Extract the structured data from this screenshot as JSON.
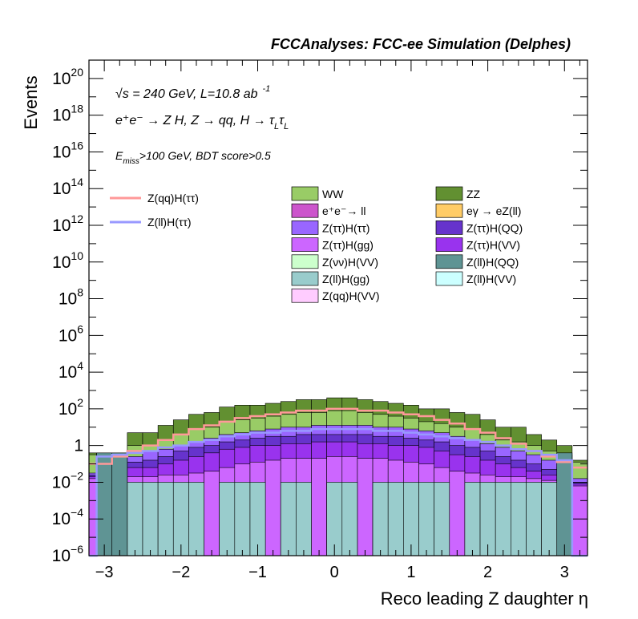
{
  "chart_data": {
    "type": "bar",
    "stacked": true,
    "title": "FCCAnalyses: FCC-ee Simulation (Delphes)",
    "xlabel": "Reco leading Z daughter η",
    "ylabel": "Events",
    "xlim": [
      -3.2,
      3.3
    ],
    "ylim_exp": [
      -6,
      21
    ],
    "y_scale": "log",
    "x_ticks": [
      -3,
      -2,
      -1,
      0,
      1,
      2,
      3
    ],
    "x_tick_labels": [
      "−3",
      "−2",
      "−1",
      "0",
      "1",
      "2",
      "3"
    ],
    "y_tick_exps": [
      -6,
      -4,
      -2,
      0,
      2,
      4,
      6,
      8,
      10,
      12,
      14,
      16,
      18,
      20
    ],
    "y_tick_labels": [
      {
        "base": "10",
        "exp": "−6"
      },
      {
        "base": "10",
        "exp": "−4"
      },
      {
        "base": "10",
        "exp": "−2"
      },
      {
        "base": "1",
        "exp": ""
      },
      {
        "base": "10",
        "exp": "2"
      },
      {
        "base": "10",
        "exp": "4"
      },
      {
        "base": "10",
        "exp": "6"
      },
      {
        "base": "10",
        "exp": "8"
      },
      {
        "base": "10",
        "exp": "10"
      },
      {
        "base": "10",
        "exp": "12"
      },
      {
        "base": "10",
        "exp": "14"
      },
      {
        "base": "10",
        "exp": "16"
      },
      {
        "base": "10",
        "exp": "18"
      },
      {
        "base": "10",
        "exp": "20"
      }
    ],
    "annotations": {
      "energy": "√s = 240 GeV, L=10.8 ab",
      "energy_sup": "-1",
      "process": "e⁺e⁻ → Z H, Z → qq, H → τ",
      "process_sub": "L",
      "process_tail": "τ",
      "process_sub2": "L",
      "selection_pre": "E",
      "selection_sub": "miss",
      "selection_post": ">100 GeV, BDT score>0.5"
    },
    "bin_edges": [
      -3.3,
      -3.1,
      -2.9,
      -2.7,
      -2.5,
      -2.3,
      -2.1,
      -1.9,
      -1.7,
      -1.5,
      -1.3,
      -1.1,
      -0.9,
      -0.7,
      -0.5,
      -0.3,
      -0.1,
      0.1,
      0.3,
      0.5,
      0.7,
      0.9,
      1.1,
      1.3,
      1.5,
      1.7,
      1.9,
      2.1,
      2.3,
      2.5,
      2.7,
      2.9,
      3.1,
      3.3
    ],
    "stack_totals_exp": [
      -0.4,
      -0.4,
      -0.7,
      0.7,
      0.7,
      1.1,
      1.4,
      1.7,
      1.8,
      2.1,
      2.2,
      2.2,
      2.3,
      2.4,
      2.5,
      2.5,
      2.6,
      2.6,
      2.5,
      2.4,
      2.3,
      2.2,
      2.0,
      2.0,
      1.8,
      1.7,
      1.4,
      1.0,
      1.0,
      0.6,
      0.3,
      0.0,
      -0.8
    ],
    "series": [
      {
        "name": "ZZ",
        "color": "#629031",
        "legend_col": 1
      },
      {
        "name": "WW",
        "color": "#99cc66",
        "legend_col": 0
      },
      {
        "name": "e⁺e⁻→ ll",
        "color": "#cc55cc",
        "legend_col": 0
      },
      {
        "name": "eγ → eZ(ll)",
        "color": "#ffcc66",
        "legend_col": 1
      },
      {
        "name": "Z(ττ)H(ττ)",
        "color": "#9966ff",
        "legend_col": 0
      },
      {
        "name": "Z(ττ)H(QQ)",
        "color": "#6633cc",
        "legend_col": 1
      },
      {
        "name": "Z(ττ)H(gg)",
        "color": "#cc66ff",
        "legend_col": 0
      },
      {
        "name": "Z(ττ)H(VV)",
        "color": "#9933ee",
        "legend_col": 1
      },
      {
        "name": "Z(νν)H(VV)",
        "color": "#ccffcc",
        "legend_col": 0
      },
      {
        "name": "Z(ll)H(QQ)",
        "color": "#5f9494",
        "legend_col": 1
      },
      {
        "name": "Z(ll)H(gg)",
        "color": "#99cccc",
        "legend_col": 0
      },
      {
        "name": "Z(ll)H(VV)",
        "color": "#ccffff",
        "legend_col": 1
      },
      {
        "name": "Z(qq)H(VV)",
        "color": "#ffccff",
        "legend_col": 0
      }
    ],
    "layers_exp": [
      {
        "name": "ZZ",
        "values": [
          -0.4,
          -0.4,
          -0.7,
          0.7,
          0.7,
          1.1,
          1.4,
          1.7,
          1.8,
          2.1,
          2.2,
          2.2,
          2.3,
          2.4,
          2.5,
          2.5,
          2.6,
          2.6,
          2.5,
          2.4,
          2.3,
          2.2,
          2.0,
          2.0,
          1.8,
          1.7,
          1.4,
          1.0,
          1.0,
          0.6,
          0.3,
          0.0,
          -0.8
        ]
      },
      {
        "name": "WW",
        "values": [
          -0.5,
          -0.5,
          -0.8,
          0.0,
          0.0,
          0.3,
          0.6,
          0.9,
          1.0,
          1.3,
          1.4,
          1.5,
          1.6,
          1.7,
          1.8,
          1.8,
          1.9,
          1.9,
          1.8,
          1.7,
          1.6,
          1.5,
          1.3,
          1.2,
          1.0,
          0.9,
          0.6,
          0.3,
          0.2,
          0.0,
          -0.3,
          -0.5,
          -0.9
        ]
      },
      {
        "name": "Z(ττ)H(ττ)",
        "values": [
          -1.5,
          -1.5,
          -1.6,
          -0.6,
          -0.3,
          -0.2,
          0.0,
          0.2,
          0.4,
          0.6,
          0.7,
          0.8,
          0.9,
          1.0,
          1.0,
          1.1,
          1.1,
          1.1,
          1.1,
          1.0,
          1.0,
          0.9,
          0.8,
          0.7,
          0.5,
          0.3,
          0.1,
          -0.1,
          -0.3,
          -0.5,
          -0.8,
          -1.2,
          -1.8
        ]
      },
      {
        "name": "Z(ττ)H(QQ)",
        "values": [
          -1.6,
          -1.6,
          -1.7,
          -0.9,
          -0.8,
          -0.6,
          -0.3,
          -0.1,
          0.0,
          0.2,
          0.3,
          0.4,
          0.5,
          0.5,
          0.6,
          0.6,
          0.6,
          0.6,
          0.6,
          0.5,
          0.5,
          0.4,
          0.3,
          0.2,
          0.0,
          -0.1,
          -0.3,
          -0.6,
          -0.8,
          -1.0,
          -1.3,
          -1.6,
          -2.0
        ]
      },
      {
        "name": "Z(ττ)H(VV)",
        "values": [
          -1.7,
          -1.7,
          -1.8,
          -1.2,
          -1.2,
          -1.0,
          -0.8,
          -0.6,
          -0.4,
          -0.2,
          -0.1,
          0.0,
          0.0,
          0.1,
          0.1,
          0.2,
          0.2,
          0.2,
          0.1,
          0.1,
          0.0,
          0.0,
          -0.1,
          -0.3,
          -0.5,
          -0.6,
          -0.8,
          -1.0,
          -1.2,
          -1.4,
          -1.6,
          -1.8,
          -2.1
        ]
      },
      {
        "name": "Z(ττ)H(gg)",
        "values": [
          -1.8,
          -1.8,
          -1.9,
          -1.7,
          -1.7,
          -1.6,
          -1.6,
          -1.5,
          -1.4,
          -1.2,
          -1.0,
          -0.9,
          -0.8,
          -0.7,
          -0.7,
          -0.7,
          -0.6,
          -0.6,
          -0.7,
          -0.7,
          -0.8,
          -0.9,
          -1.0,
          -1.2,
          -1.4,
          -1.5,
          -1.6,
          -1.7,
          -1.7,
          -1.8,
          -1.9,
          -1.9,
          -2.2
        ]
      },
      {
        "name": "Z(ll)H(gg)",
        "values": [
          -6.5,
          -2.0,
          -2.0,
          -2.0,
          -2.0,
          -2.0,
          -2.0,
          -2.0,
          -6.5,
          -2.0,
          -2.0,
          -2.0,
          -6.5,
          -2.0,
          -2.0,
          -6.5,
          -2.0,
          -2.0,
          -6.5,
          -2.0,
          -2.0,
          -2.0,
          -2.0,
          -2.0,
          -6.5,
          -2.0,
          -2.0,
          -2.0,
          -2.0,
          -2.0,
          -2.0,
          -6.5,
          -6.5
        ]
      },
      {
        "name": "Z(ll)H(QQ)",
        "values": [
          -6.5,
          -0.4,
          -0.4,
          -6.5,
          -6.5,
          -6.5,
          -6.5,
          -6.5,
          -6.5,
          -6.5,
          -6.5,
          -6.5,
          -6.5,
          -6.5,
          -6.5,
          -6.5,
          -6.5,
          -6.5,
          -6.5,
          -6.5,
          -6.5,
          -6.5,
          -6.5,
          -6.5,
          -6.5,
          -6.5,
          -6.5,
          -6.5,
          -6.5,
          -6.5,
          -6.5,
          -0.4,
          -6.5
        ]
      }
    ],
    "line_series": [
      {
        "name": "Z(qq)H(ττ)",
        "color": "#ff9999",
        "values": [
          -1.0,
          -1.0,
          -0.6,
          -0.3,
          0.0,
          0.3,
          0.6,
          0.9,
          1.1,
          1.3,
          1.5,
          1.6,
          1.7,
          1.8,
          1.9,
          1.9,
          2.0,
          2.0,
          1.9,
          1.9,
          1.8,
          1.7,
          1.6,
          1.4,
          1.2,
          0.9,
          0.7,
          0.4,
          0.1,
          -0.3,
          -0.6,
          -0.9,
          -1.2
        ]
      },
      {
        "name": "Z(ll)H(ττ)",
        "color": "#9999ff",
        "values": [
          -6.5,
          -0.6,
          -0.5,
          -0.4,
          -0.3,
          -0.1,
          0.0,
          0.2,
          0.3,
          0.5,
          0.6,
          0.7,
          0.7,
          0.8,
          0.8,
          0.9,
          0.9,
          0.9,
          0.9,
          0.8,
          0.8,
          0.7,
          0.6,
          0.5,
          0.4,
          0.3,
          0.2,
          0.0,
          -0.2,
          -0.3,
          -0.5,
          -0.8,
          -6.5
        ]
      }
    ],
    "legend_lines_placement": "upper-left",
    "legend_fills_placement": "upper-center",
    "grid": false
  }
}
